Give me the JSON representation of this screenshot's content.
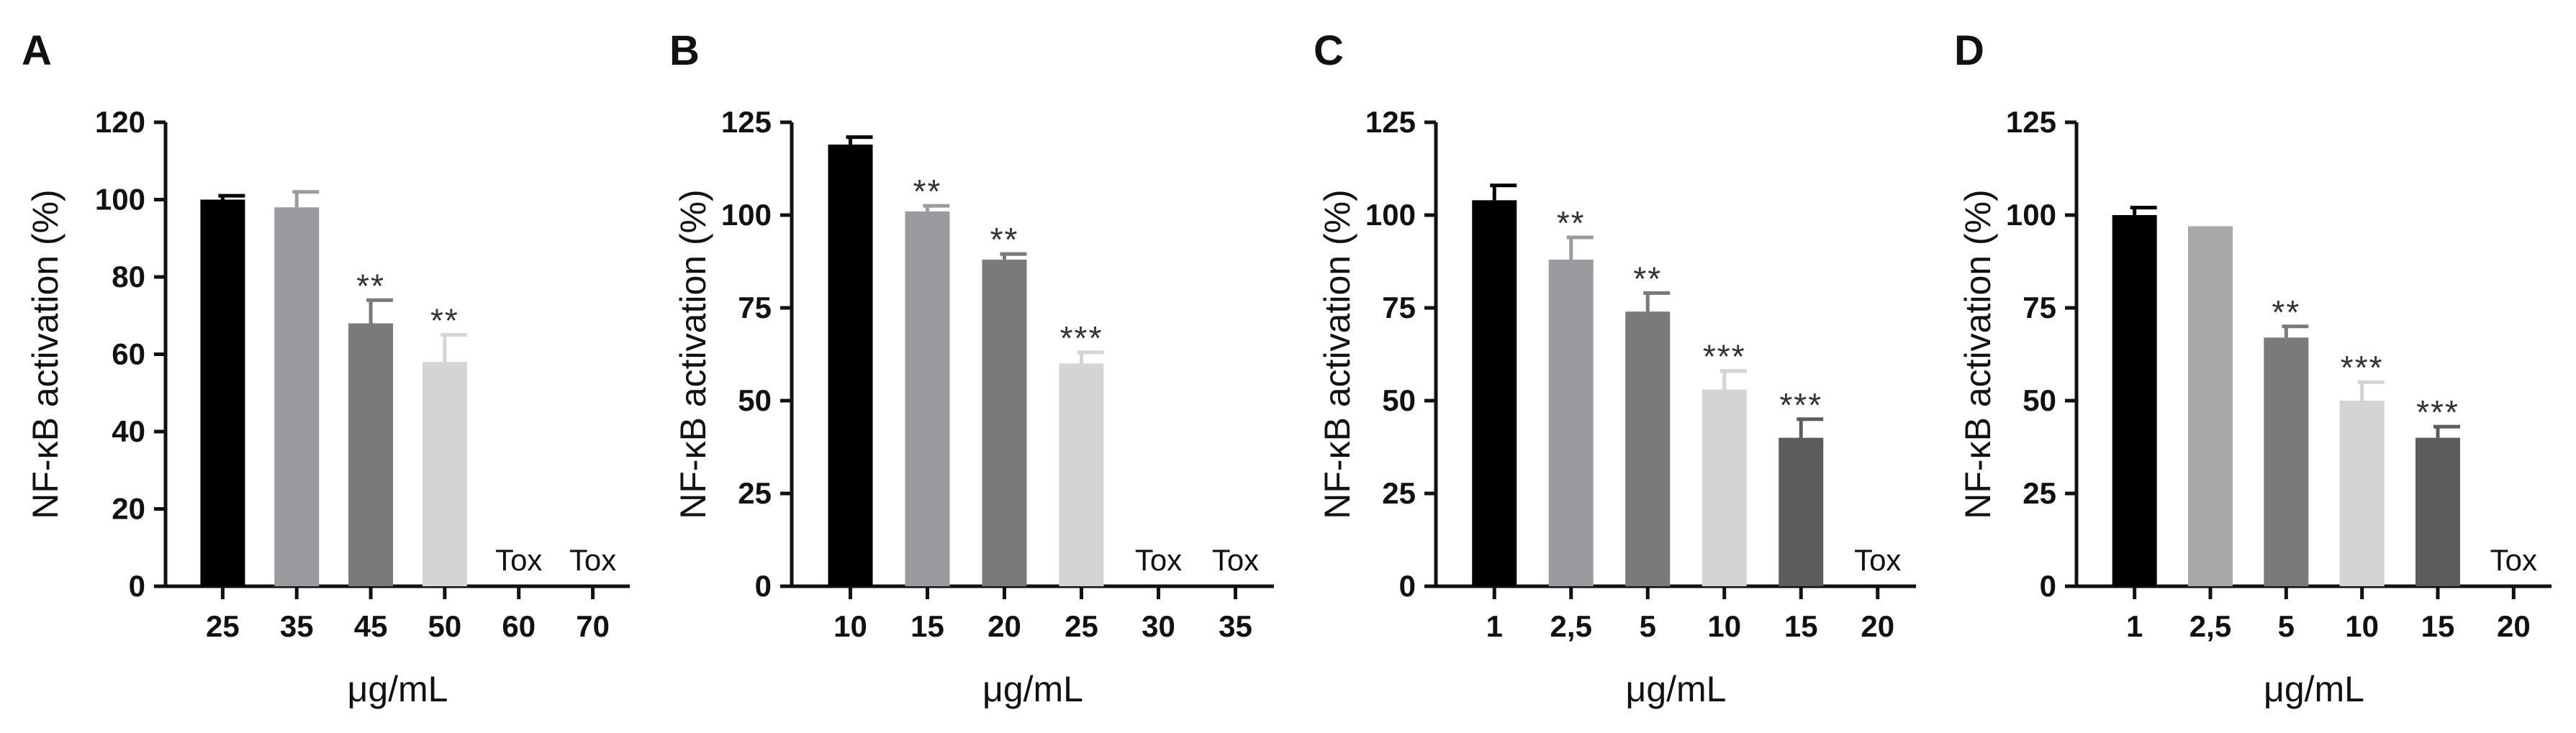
{
  "chart_data": [
    {
      "type": "bar",
      "panel": "A",
      "ylabel": "NF-κB activation (%)",
      "xlabel": "μg/mL",
      "ylim": [
        0,
        120
      ],
      "yticks": [
        "0",
        "20",
        "40",
        "60",
        "80",
        "100",
        "120"
      ],
      "categories": [
        "25",
        "35",
        "45",
        "50",
        "60",
        "70"
      ],
      "values": [
        100,
        98,
        68,
        58,
        null,
        null
      ],
      "errors": [
        1,
        4,
        6,
        7,
        null,
        null
      ],
      "colors": [
        "#000000",
        "#9b9b9f",
        "#7a7a7a",
        "#d4d4d4",
        "#ffffff",
        "#ffffff"
      ],
      "annotations": [
        "",
        "",
        "**",
        "**",
        "Tox",
        "Tox"
      ]
    },
    {
      "type": "bar",
      "panel": "B",
      "ylabel": "NF-κB activation (%)",
      "xlabel": "μg/mL",
      "ylim": [
        0,
        125
      ],
      "yticks": [
        "0",
        "25",
        "50",
        "75",
        "100",
        "125"
      ],
      "categories": [
        "10",
        "15",
        "20",
        "25",
        "30",
        "35"
      ],
      "values": [
        119,
        101,
        88,
        60,
        null,
        null
      ],
      "errors": [
        2,
        1.5,
        1.5,
        3,
        null,
        null
      ],
      "colors": [
        "#000000",
        "#9b9b9f",
        "#7a7a7a",
        "#d4d4d4",
        "#ffffff",
        "#ffffff"
      ],
      "annotations": [
        "",
        "**",
        "**",
        "***",
        "Tox",
        "Tox"
      ]
    },
    {
      "type": "bar",
      "panel": "C",
      "ylabel": "NF-κB activation (%)",
      "xlabel": "μg/mL",
      "ylim": [
        0,
        125
      ],
      "yticks": [
        "0",
        "25",
        "50",
        "75",
        "100",
        "125"
      ],
      "categories": [
        "1",
        "2,5",
        "5",
        "10",
        "15",
        "20"
      ],
      "values": [
        104,
        88,
        74,
        53,
        40,
        null
      ],
      "errors": [
        4,
        6,
        5,
        5,
        5,
        null
      ],
      "colors": [
        "#000000",
        "#9b9b9f",
        "#7a7a7a",
        "#d4d4d4",
        "#5c5c5c",
        "#ffffff"
      ],
      "annotations": [
        "",
        "**",
        "**",
        "***",
        "***",
        "Tox"
      ]
    },
    {
      "type": "bar",
      "panel": "D",
      "ylabel": "NF-κB activation (%)",
      "xlabel": "μg/mL",
      "ylim": [
        0,
        125
      ],
      "yticks": [
        "0",
        "25",
        "50",
        "75",
        "100",
        "125"
      ],
      "categories": [
        "1",
        "2,5",
        "5",
        "10",
        "15",
        "20"
      ],
      "values": [
        100,
        97,
        67,
        50,
        40,
        null
      ],
      "errors": [
        2,
        0,
        3,
        5,
        3,
        null
      ],
      "colors": [
        "#000000",
        "#a8a8ab",
        "#7a7a7a",
        "#d4d4d4",
        "#5c5c5c",
        "#ffffff"
      ],
      "annotations": [
        "",
        "",
        "**",
        "***",
        "***",
        "Tox"
      ]
    }
  ]
}
